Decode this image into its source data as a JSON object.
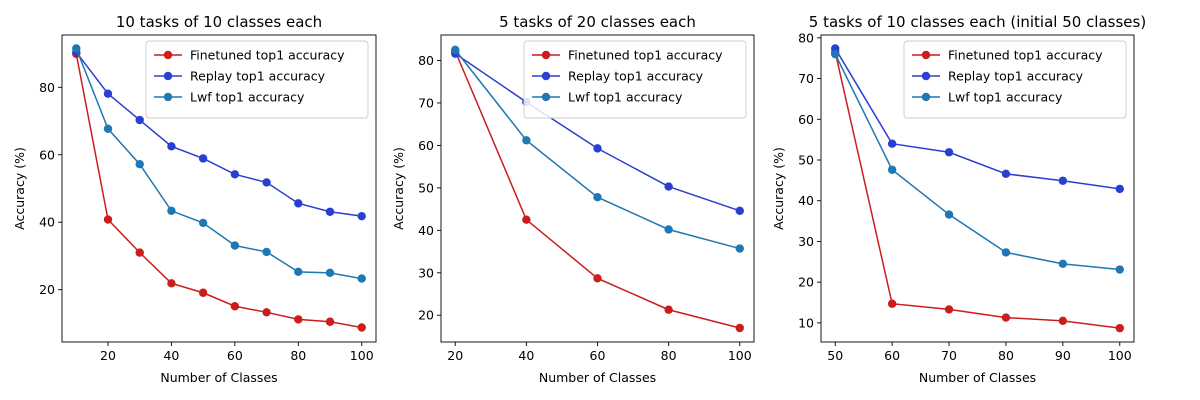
{
  "legend_labels": {
    "finetuned": "Finetuned top1 accuracy",
    "replay": "Replay top1 accuracy",
    "lwf": "Lwf top1 accuracy"
  },
  "colors": {
    "finetuned": "#cc1d1d",
    "replay": "#2a3fd1",
    "lwf": "#1f77b4"
  },
  "chart_data": [
    {
      "type": "line",
      "title": "10 tasks of 10 classes each",
      "xlabel": "Number of Classes",
      "ylabel": "Accuracy (%)",
      "xlim": [
        5.5,
        104.5
      ],
      "ylim": [
        4.5,
        95.5
      ],
      "xticks": [
        20,
        40,
        60,
        80,
        100
      ],
      "yticks": [
        20,
        40,
        60,
        80
      ],
      "legend": "top-right",
      "x": [
        10,
        20,
        30,
        40,
        50,
        60,
        70,
        80,
        90,
        100
      ],
      "series": [
        {
          "name": "Finetuned top1 accuracy",
          "key": "finetuned",
          "values": [
            89.9,
            40.8,
            31.0,
            21.9,
            19.1,
            15.1,
            13.3,
            11.2,
            10.5,
            8.8
          ]
        },
        {
          "name": "Replay top1 accuracy",
          "key": "replay",
          "values": [
            90.4,
            78.1,
            70.3,
            62.5,
            58.9,
            54.2,
            51.8,
            45.6,
            43.1,
            41.8
          ]
        },
        {
          "name": "Lwf top1 accuracy",
          "key": "lwf",
          "values": [
            91.5,
            67.7,
            57.2,
            43.4,
            39.8,
            33.1,
            31.2,
            25.3,
            25.0,
            23.3
          ]
        }
      ]
    },
    {
      "type": "line",
      "title": "5 tasks of 20 classes each",
      "xlabel": "Number of Classes",
      "ylabel": "Accuracy (%)",
      "xlim": [
        16,
        104
      ],
      "ylim": [
        13.7,
        86.0
      ],
      "xticks": [
        20,
        40,
        60,
        80,
        100
      ],
      "yticks": [
        20,
        30,
        40,
        50,
        60,
        70,
        80
      ],
      "legend": "top-right",
      "x": [
        20,
        40,
        60,
        80,
        100
      ],
      "series": [
        {
          "name": "Finetuned top1 accuracy",
          "key": "finetuned",
          "values": [
            82.2,
            42.5,
            28.7,
            21.3,
            17.0
          ]
        },
        {
          "name": "Replay top1 accuracy",
          "key": "replay",
          "values": [
            81.6,
            70.2,
            59.3,
            50.3,
            44.6
          ]
        },
        {
          "name": "Lwf top1 accuracy",
          "key": "lwf",
          "values": [
            82.5,
            61.2,
            47.8,
            40.2,
            35.7
          ]
        }
      ]
    },
    {
      "type": "line",
      "title": "5 tasks of 10 classes each (initial 50 classes)",
      "xlabel": "Number of Classes",
      "ylabel": "Accuracy (%)",
      "xlim": [
        47.5,
        102.5
      ],
      "ylim": [
        5.3,
        80.7
      ],
      "xticks": [
        50,
        60,
        70,
        80,
        90,
        100
      ],
      "yticks": [
        10,
        20,
        30,
        40,
        50,
        60,
        70,
        80
      ],
      "legend": "top-right",
      "x": [
        50,
        60,
        70,
        80,
        90,
        100
      ],
      "series": [
        {
          "name": "Finetuned top1 accuracy",
          "key": "finetuned",
          "values": [
            76.5,
            14.7,
            13.3,
            11.3,
            10.5,
            8.7
          ]
        },
        {
          "name": "Replay top1 accuracy",
          "key": "replay",
          "values": [
            77.4,
            54.0,
            51.9,
            46.6,
            44.9,
            42.9
          ]
        },
        {
          "name": "Lwf top1 accuracy",
          "key": "lwf",
          "values": [
            76.0,
            47.6,
            36.6,
            27.3,
            24.5,
            23.1
          ]
        }
      ]
    }
  ]
}
